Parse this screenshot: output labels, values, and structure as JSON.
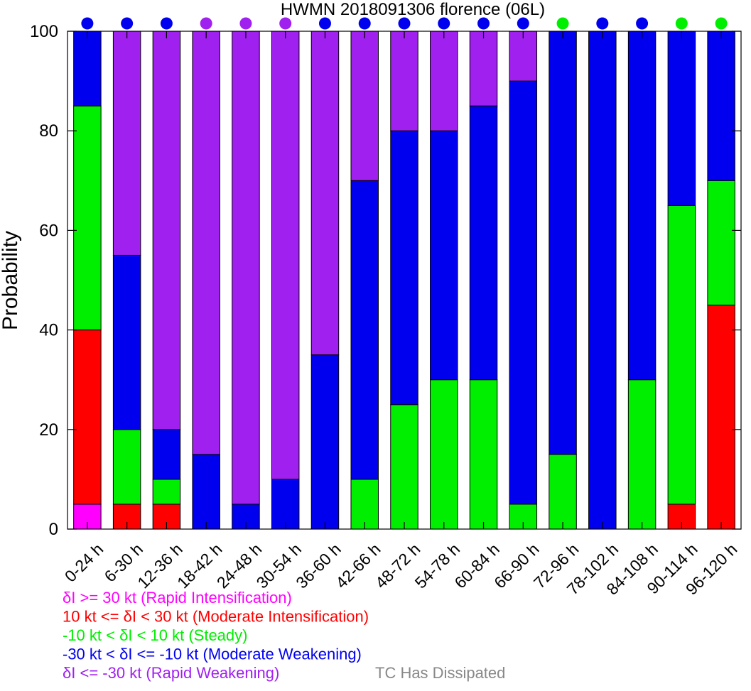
{
  "chart_data": {
    "type": "bar",
    "stacked": true,
    "title": "HWMN 2018091306 florence (06L)",
    "xlabel": "",
    "ylabel": "Probability",
    "ylim": [
      0,
      100
    ],
    "yticks": [
      0,
      20,
      40,
      60,
      80,
      100
    ],
    "grid": false,
    "legend_placement": "bottom-left",
    "categories": [
      "0-24 h",
      "6-30 h",
      "12-36 h",
      "18-42 h",
      "24-48 h",
      "30-54 h",
      "36-60 h",
      "42-66 h",
      "48-72 h",
      "54-78 h",
      "60-84 h",
      "66-90 h",
      "72-96 h",
      "78-102 h",
      "84-108 h",
      "90-114 h",
      "96-120 h"
    ],
    "series": [
      {
        "name": "δI >= 30 kt (Rapid Intensification)",
        "color": "#ff00ff",
        "values": [
          5,
          0,
          0,
          0,
          0,
          0,
          0,
          0,
          0,
          0,
          0,
          0,
          0,
          0,
          0,
          0,
          0
        ]
      },
      {
        "name": "10 kt <= δI < 30 kt (Moderate Intensification)",
        "color": "#ff0000",
        "values": [
          35,
          5,
          5,
          0,
          0,
          0,
          0,
          0,
          0,
          0,
          0,
          0,
          0,
          0,
          0,
          5,
          45
        ]
      },
      {
        "name": "-10 kt < δI < 10 kt (Steady)",
        "color": "#00ee00",
        "values": [
          45,
          15,
          5,
          0,
          0,
          0,
          0,
          10,
          25,
          30,
          30,
          5,
          15,
          0,
          30,
          60,
          25
        ]
      },
      {
        "name": "-30 kt < δI <= -10 kt (Moderate Weakening)",
        "color": "#0000ee",
        "values": [
          15,
          35,
          10,
          15,
          5,
          10,
          35,
          60,
          55,
          50,
          55,
          85,
          85,
          100,
          70,
          35,
          30
        ]
      },
      {
        "name": "δI <= -30 kt (Rapid Weakening)",
        "color": "#a020f0",
        "values": [
          0,
          45,
          80,
          85,
          95,
          90,
          65,
          30,
          20,
          20,
          15,
          10,
          0,
          0,
          0,
          0,
          0
        ]
      }
    ],
    "top_markers": {
      "colors": [
        "#0000ee",
        "#0000ee",
        "#0000ee",
        "#a020f0",
        "#a020f0",
        "#a020f0",
        "#0000ee",
        "#0000ee",
        "#0000ee",
        "#0000ee",
        "#0000ee",
        "#0000ee",
        "#00ee00",
        "#0000ee",
        "#0000ee",
        "#00ee00",
        "#00ee00"
      ]
    },
    "legend_entries": [
      {
        "label": "δI >= 30 kt (Rapid Intensification)",
        "color": "#ff00ff"
      },
      {
        "label": "10 kt <= δI < 30 kt (Moderate Intensification)",
        "color": "#ff0000"
      },
      {
        "label": "-10 kt < δI < 10 kt (Steady)",
        "color": "#00ee00"
      },
      {
        "label": "-30 kt < δI <= -10 kt (Moderate Weakening)",
        "color": "#0000ee"
      },
      {
        "label": "δI <= -30 kt (Rapid Weakening)",
        "color": "#a020f0"
      }
    ],
    "dissipated_note": {
      "label": "TC Has Dissipated",
      "color": "#888888"
    }
  }
}
